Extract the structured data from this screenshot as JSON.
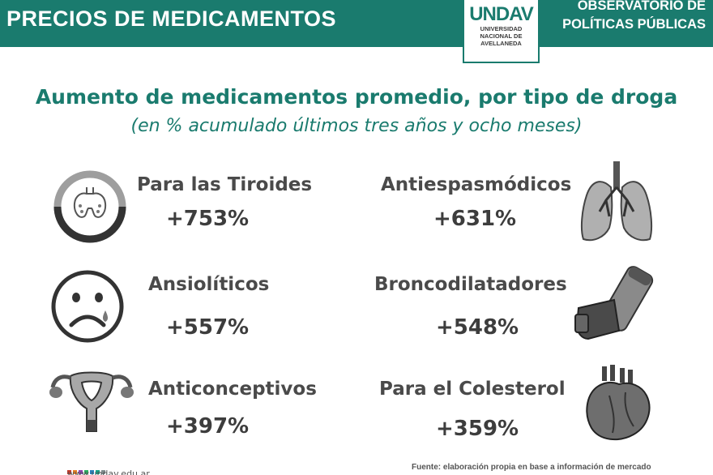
{
  "header": {
    "title": "PRECIOS DE MEDICAMENTOS",
    "logo_word": "UNDAV",
    "logo_sub_1": "UNIVERSIDAD",
    "logo_sub_2": "NACIONAL DE",
    "logo_sub_3": "AVELLANEDA",
    "observatorio_1": "OBSERVATORIO DE",
    "observatorio_2": "POLÍTICAS PÚBLICAS",
    "accent": "#1a7b6e"
  },
  "chart_data": {
    "type": "table",
    "title": "Aumento de medicamentos promedio, por tipo de droga",
    "subtitle": "(en % acumulado últimos tres años y ocho meses)",
    "categories": [
      "Para las Tiroides",
      "Antiespasmódicos",
      "Ansiolíticos",
      "Broncodilatadores",
      "Anticonceptivos",
      "Para el Colesterol"
    ],
    "values": [
      753,
      631,
      557,
      548,
      397,
      359
    ],
    "value_labels": [
      "+753%",
      "+631%",
      "+557%",
      "+548%",
      "+397%",
      "+359%"
    ],
    "icons": [
      "thyroid-icon",
      "lungs-icon",
      "sad-face-icon",
      "inhaler-icon",
      "uterus-icon",
      "heart-icon"
    ]
  },
  "footer": {
    "website": "www.undav.edu.ar",
    "source": "Fuente: elaboración propia en base a información de mercado",
    "dot_colors": [
      "#c0392b",
      "#e67e22",
      "#8e44ad",
      "#27ae60",
      "#2980b9",
      "#16a085",
      "#7f8c8d"
    ]
  }
}
